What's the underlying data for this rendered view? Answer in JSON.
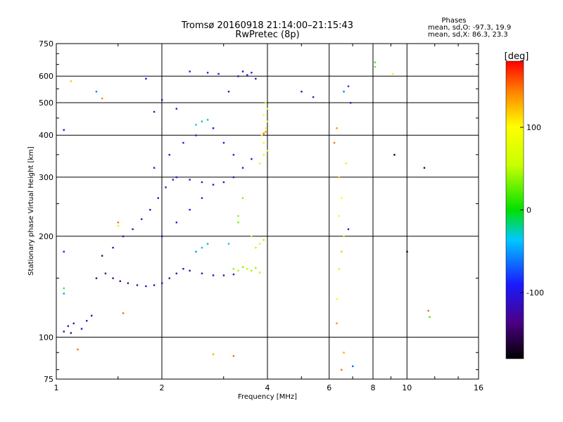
{
  "chart_data": {
    "type": "scatter",
    "title": "Tromsø 20160918 21:14:00–21:15:43",
    "subtitle": "RwPretec (8p)",
    "xlabel": "Frequency [MHz]",
    "ylabel": "Stationary phase Virtual Height [km]",
    "x_scale": "log",
    "y_scale": "log",
    "xlim": [
      1,
      16
    ],
    "ylim": [
      75,
      750
    ],
    "x_ticks": [
      1,
      2,
      4,
      6,
      8,
      10,
      16
    ],
    "x_tick_labels": [
      "1",
      "2",
      "4",
      "6",
      "8",
      "10",
      "16"
    ],
    "y_ticks": [
      75,
      100,
      200,
      300,
      400,
      500,
      600,
      750
    ],
    "y_tick_labels": [
      "75",
      "100",
      "200",
      "300",
      "400",
      "500",
      "600",
      "750"
    ],
    "grid": true,
    "stats": {
      "heading": "Phases",
      "line_o": "mean, sd,O: -97.3, 19.9",
      "line_x": "mean, sd,X: 86.3, 23.3"
    },
    "colorbar": {
      "label": "[deg]",
      "range": [
        -180,
        180
      ],
      "ticks": [
        100,
        0,
        -100
      ],
      "tick_labels": [
        "100",
        "0",
        "-100"
      ]
    },
    "series": [
      {
        "points": [
          [
            1.05,
            104,
            -120
          ],
          [
            1.08,
            108,
            -110
          ],
          [
            1.1,
            103,
            -125
          ],
          [
            1.12,
            110,
            -100
          ],
          [
            1.18,
            106,
            -115
          ],
          [
            1.22,
            112,
            -105
          ],
          [
            1.26,
            116,
            -118
          ],
          [
            1.3,
            150,
            -140
          ],
          [
            1.38,
            155,
            -135
          ],
          [
            1.45,
            150,
            -130
          ],
          [
            1.52,
            147,
            -128
          ],
          [
            1.6,
            145,
            -125
          ],
          [
            1.7,
            143,
            -122
          ],
          [
            1.8,
            142,
            -120
          ],
          [
            1.9,
            143,
            -118
          ],
          [
            2.0,
            145,
            -116
          ],
          [
            2.1,
            150,
            -114
          ],
          [
            2.2,
            155,
            -112
          ],
          [
            2.3,
            160,
            -110
          ],
          [
            2.4,
            158,
            -130
          ],
          [
            2.6,
            155,
            -125
          ],
          [
            2.8,
            153,
            -128
          ],
          [
            3.0,
            153,
            -120
          ],
          [
            3.2,
            154,
            -110
          ],
          [
            3.2,
            160,
            40
          ],
          [
            3.3,
            158,
            45
          ],
          [
            3.4,
            162,
            35
          ],
          [
            3.5,
            160,
            50
          ],
          [
            3.6,
            158,
            42
          ],
          [
            3.7,
            161,
            38
          ],
          [
            3.8,
            156,
            48
          ],
          [
            1.35,
            175,
            -140
          ],
          [
            1.45,
            185,
            -130
          ],
          [
            1.55,
            200,
            -125
          ],
          [
            1.65,
            210,
            -120
          ],
          [
            1.75,
            225,
            -118
          ],
          [
            1.85,
            240,
            -112
          ],
          [
            1.95,
            260,
            -108
          ],
          [
            2.05,
            280,
            -105
          ],
          [
            2.15,
            295,
            -100
          ],
          [
            2.2,
            300,
            -110
          ],
          [
            2.4,
            295,
            -108
          ],
          [
            2.6,
            290,
            -106
          ],
          [
            2.8,
            285,
            -110
          ],
          [
            3.0,
            290,
            -115
          ],
          [
            3.2,
            300,
            -118
          ],
          [
            3.4,
            320,
            -120
          ],
          [
            3.6,
            340,
            -112
          ],
          [
            3.8,
            330,
            60
          ],
          [
            3.9,
            350,
            70
          ],
          [
            4.0,
            360,
            80
          ],
          [
            3.9,
            380,
            75
          ],
          [
            3.85,
            400,
            90
          ],
          [
            3.95,
            420,
            100
          ],
          [
            4.0,
            440,
            110
          ],
          [
            3.9,
            460,
            95
          ],
          [
            4.0,
            480,
            85
          ],
          [
            3.95,
            500,
            75
          ],
          [
            3.9,
            405,
            150
          ],
          [
            3.95,
            410,
            140
          ],
          [
            3.3,
            600,
            -115
          ],
          [
            3.4,
            620,
            -110
          ],
          [
            3.5,
            605,
            -118
          ],
          [
            3.6,
            615,
            -108
          ],
          [
            3.7,
            590,
            -112
          ],
          [
            2.7,
            615,
            -95
          ],
          [
            2.4,
            620,
            -100
          ],
          [
            2.9,
            610,
            -105
          ],
          [
            2.5,
            430,
            -30
          ],
          [
            2.6,
            440,
            -20
          ],
          [
            2.7,
            445,
            -25
          ],
          [
            2.8,
            420,
            -40
          ],
          [
            2.5,
            180,
            -50
          ],
          [
            2.6,
            185,
            -40
          ],
          [
            2.7,
            190,
            -45
          ],
          [
            3.1,
            190,
            -35
          ],
          [
            3.3,
            220,
            30
          ],
          [
            3.3,
            230,
            40
          ],
          [
            3.4,
            260,
            35
          ],
          [
            3.7,
            185,
            50
          ],
          [
            3.8,
            190,
            55
          ],
          [
            3.9,
            195,
            45
          ],
          [
            3.6,
            200,
            60
          ],
          [
            2.0,
            200,
            -110
          ],
          [
            2.2,
            220,
            -105
          ],
          [
            2.4,
            240,
            -100
          ],
          [
            2.6,
            260,
            -98
          ],
          [
            1.9,
            320,
            -112
          ],
          [
            2.1,
            350,
            -108
          ],
          [
            2.3,
            380,
            -102
          ],
          [
            2.5,
            400,
            -100
          ],
          [
            2.8,
            420,
            -95
          ],
          [
            3.0,
            380,
            -98
          ],
          [
            3.2,
            350,
            -92
          ],
          [
            1.9,
            470,
            -110
          ],
          [
            2.0,
            510,
            -105
          ],
          [
            2.2,
            480,
            -100
          ],
          [
            3.1,
            540,
            -110
          ],
          [
            6.3,
            420,
            140
          ],
          [
            6.2,
            380,
            150
          ],
          [
            6.4,
            300,
            120
          ],
          [
            6.5,
            260,
            100
          ],
          [
            6.4,
            230,
            90
          ],
          [
            6.6,
            200,
            110
          ],
          [
            6.5,
            180,
            120
          ],
          [
            6.4,
            160,
            110
          ],
          [
            6.3,
            130,
            100
          ],
          [
            6.3,
            110,
            140
          ],
          [
            6.6,
            90,
            130
          ],
          [
            6.5,
            80,
            150
          ],
          [
            6.8,
            560,
            -80
          ],
          [
            6.6,
            540,
            -60
          ],
          [
            6.9,
            500,
            -90
          ],
          [
            6.7,
            330,
            70
          ],
          [
            6.8,
            210,
            -110
          ],
          [
            7.0,
            82,
            -70
          ],
          [
            5.0,
            540,
            -120
          ],
          [
            5.4,
            520,
            -110
          ],
          [
            8.1,
            640,
            30
          ],
          [
            8.1,
            660,
            20
          ],
          [
            9.1,
            610,
            70
          ],
          [
            9.2,
            350,
            -170
          ],
          [
            10.0,
            180,
            -165
          ],
          [
            11.2,
            320,
            -150
          ],
          [
            11.5,
            120,
            150
          ],
          [
            11.6,
            115,
            20
          ],
          [
            1.1,
            580,
            120
          ],
          [
            1.05,
            415,
            -110
          ],
          [
            1.05,
            180,
            -90
          ],
          [
            1.05,
            140,
            20
          ],
          [
            1.05,
            135,
            -50
          ],
          [
            1.3,
            540,
            -60
          ],
          [
            1.35,
            515,
            140
          ],
          [
            1.8,
            590,
            -100
          ],
          [
            1.15,
            92,
            150
          ],
          [
            3.2,
            88,
            150
          ],
          [
            2.8,
            89,
            130
          ],
          [
            1.55,
            118,
            150
          ],
          [
            1.5,
            220,
            150
          ],
          [
            1.5,
            215,
            110
          ]
        ]
      }
    ]
  }
}
